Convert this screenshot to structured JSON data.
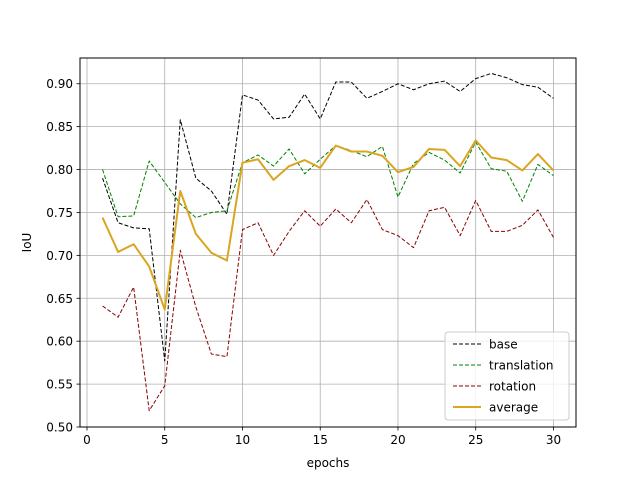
{
  "chart_data": {
    "type": "line",
    "title": "",
    "xlabel": "epochs",
    "ylabel": "IoU",
    "xlim": [
      -0.45,
      31.45
    ],
    "ylim": [
      0.5,
      0.93
    ],
    "xticks": [
      0,
      5,
      10,
      15,
      20,
      25,
      30
    ],
    "xtick_labels": [
      "0",
      "5",
      "10",
      "15",
      "20",
      "25",
      "30"
    ],
    "yticks": [
      0.5,
      0.55,
      0.6,
      0.65,
      0.7,
      0.75,
      0.8,
      0.85,
      0.9
    ],
    "ytick_labels": [
      "0.50",
      "0.55",
      "0.60",
      "0.65",
      "0.70",
      "0.75",
      "0.80",
      "0.85",
      "0.90"
    ],
    "grid": true,
    "legend_position": "lower-right",
    "x": [
      1,
      2,
      3,
      4,
      5,
      6,
      7,
      8,
      9,
      10,
      11,
      12,
      13,
      14,
      15,
      16,
      17,
      18,
      19,
      20,
      21,
      22,
      23,
      24,
      25,
      26,
      27,
      28,
      29,
      30
    ],
    "series": [
      {
        "name": "base",
        "color": "#000000",
        "style": "dashed",
        "values": [
          0.79,
          0.738,
          0.732,
          0.731,
          0.577,
          0.858,
          0.79,
          0.775,
          0.748,
          0.887,
          0.881,
          0.859,
          0.861,
          0.888,
          0.859,
          0.902,
          0.902,
          0.883,
          0.891,
          0.9,
          0.893,
          0.9,
          0.903,
          0.891,
          0.906,
          0.912,
          0.907,
          0.899,
          0.896,
          0.883
        ]
      },
      {
        "name": "translation",
        "color": "#008000",
        "style": "dashed",
        "values": [
          0.8,
          0.745,
          0.746,
          0.81,
          0.785,
          0.76,
          0.744,
          0.75,
          0.752,
          0.808,
          0.817,
          0.804,
          0.824,
          0.795,
          0.812,
          0.828,
          0.822,
          0.815,
          0.827,
          0.768,
          0.807,
          0.82,
          0.811,
          0.796,
          0.832,
          0.801,
          0.798,
          0.763,
          0.806,
          0.793
        ]
      },
      {
        "name": "rotation",
        "color": "#8b0000",
        "style": "dashed",
        "values": [
          0.641,
          0.628,
          0.663,
          0.519,
          0.548,
          0.706,
          0.64,
          0.585,
          0.582,
          0.73,
          0.738,
          0.7,
          0.728,
          0.752,
          0.734,
          0.754,
          0.738,
          0.765,
          0.73,
          0.723,
          0.709,
          0.752,
          0.756,
          0.723,
          0.764,
          0.728,
          0.728,
          0.735,
          0.753,
          0.721
        ]
      },
      {
        "name": "average",
        "color": "#daa520",
        "style": "solid",
        "values": [
          0.744,
          0.704,
          0.713,
          0.687,
          0.637,
          0.775,
          0.725,
          0.703,
          0.694,
          0.808,
          0.812,
          0.788,
          0.804,
          0.811,
          0.802,
          0.828,
          0.821,
          0.821,
          0.816,
          0.797,
          0.803,
          0.824,
          0.823,
          0.804,
          0.834,
          0.814,
          0.811,
          0.799,
          0.818,
          0.799
        ]
      }
    ]
  }
}
